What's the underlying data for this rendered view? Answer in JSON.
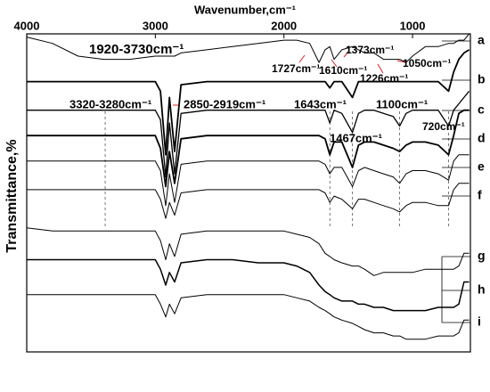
{
  "chart_data": {
    "type": "line",
    "xlabel": "Wavenumber,cm⁻¹",
    "ylabel": "Transmittance,%",
    "xlim": [
      4000,
      550
    ],
    "xticks": [
      4000,
      3000,
      2000,
      1000
    ],
    "ylim": [
      0,
      100
    ],
    "x": [
      4000,
      3800,
      3600,
      3400,
      3200,
      3000,
      2960,
      2919,
      2890,
      2850,
      2800,
      2600,
      2400,
      2200,
      2000,
      1900,
      1800,
      1727,
      1680,
      1643,
      1610,
      1550,
      1467,
      1420,
      1373,
      1300,
      1226,
      1150,
      1100,
      1050,
      1000,
      900,
      800,
      720,
      680,
      640,
      600,
      560
    ],
    "series": [
      {
        "name": "a",
        "color": "#000000",
        "values": [
          99,
          97,
          93,
          92,
          92,
          93,
          93,
          93,
          93,
          93,
          94,
          95,
          96,
          97,
          98,
          98,
          97,
          91,
          95,
          96,
          92,
          95,
          96,
          95,
          94,
          94,
          92,
          92,
          92,
          91,
          93,
          96,
          96,
          97,
          97,
          98,
          98,
          100
        ]
      },
      {
        "name": "b",
        "color": "#000000",
        "values": [
          85,
          85,
          85,
          85,
          85,
          85,
          82,
          62,
          80,
          63,
          84,
          85,
          85,
          85,
          85,
          85,
          85,
          85,
          85,
          83,
          85,
          85,
          80,
          85,
          85,
          85,
          85,
          85,
          85,
          85,
          85,
          85,
          85,
          82,
          88,
          92,
          94,
          95
        ]
      },
      {
        "name": "c",
        "color": "#000000",
        "values": [
          76,
          76,
          76,
          76,
          76,
          76,
          73,
          55,
          72,
          56,
          75,
          76,
          76,
          76,
          76,
          76,
          76,
          76,
          76,
          72,
          76,
          75,
          69,
          75,
          76,
          76,
          75,
          74,
          71,
          75,
          76,
          76,
          76,
          71,
          76,
          78,
          80,
          82
        ]
      },
      {
        "name": "d",
        "color": "#000000",
        "values": [
          68,
          68,
          68,
          68,
          68,
          68,
          64,
          52,
          63,
          53,
          67,
          68,
          68,
          68,
          68,
          68,
          68,
          68,
          67,
          62,
          66,
          66,
          58,
          65,
          66,
          66,
          65,
          64,
          63,
          65,
          66,
          66,
          65,
          62,
          68,
          75,
          76,
          76
        ]
      },
      {
        "name": "e",
        "color": "#000000",
        "values": [
          60,
          60,
          60,
          60,
          60,
          60,
          57,
          46,
          56,
          47,
          59,
          60,
          60,
          60,
          60,
          60,
          60,
          60,
          59,
          56,
          58,
          58,
          52,
          57,
          58,
          57,
          56,
          55,
          53,
          56,
          57,
          57,
          56,
          54,
          60,
          62,
          62,
          62
        ]
      },
      {
        "name": "f",
        "color": "#000000",
        "values": [
          51,
          51,
          51,
          51,
          51,
          51,
          48,
          42,
          47,
          43,
          50,
          51,
          51,
          51,
          51,
          51,
          51,
          51,
          50,
          47,
          49,
          48,
          45,
          48,
          48,
          47,
          46,
          45,
          44,
          46,
          47,
          47,
          46,
          46,
          51,
          53,
          53,
          53
        ]
      },
      {
        "name": "g",
        "color": "#000000",
        "values": [
          39,
          38,
          38,
          38,
          38,
          38,
          35,
          29,
          34,
          30,
          37,
          38,
          38,
          38,
          38,
          37,
          36,
          34,
          31,
          30,
          29,
          28,
          27,
          27,
          26,
          24,
          25,
          25,
          25,
          25,
          25,
          26,
          26,
          26,
          26,
          27,
          31,
          31
        ]
      },
      {
        "name": "h",
        "color": "#000000",
        "values": [
          29,
          29,
          29,
          29,
          29,
          29,
          26,
          21,
          25,
          22,
          28,
          29,
          29,
          28,
          28,
          27,
          25,
          21,
          19,
          18,
          17,
          16,
          16,
          15,
          15,
          14,
          14,
          13,
          13,
          13,
          13,
          13,
          14,
          14,
          14,
          15,
          22,
          22
        ]
      },
      {
        "name": "i",
        "color": "#000000",
        "values": [
          18,
          18,
          18,
          18,
          18,
          18,
          15,
          11,
          15,
          12,
          17,
          18,
          18,
          18,
          18,
          17,
          16,
          14,
          13,
          12,
          11,
          10,
          9,
          8,
          7,
          6,
          6,
          5,
          5,
          4,
          4,
          4,
          5,
          5,
          5,
          6,
          10,
          10
        ]
      }
    ],
    "reference_lines": [
      3390,
      1643,
      1467,
      1100,
      720
    ],
    "annotations": [
      "1920-3730cm⁻¹",
      "1727cm⁻¹",
      "1610cm⁻¹",
      "1373cm⁻¹",
      "1226cm⁻¹",
      "1050cm⁻¹",
      "3320-3280cm⁻¹",
      "2850-2919cm⁻¹",
      "1643cm⁻¹",
      "1100cm⁻¹",
      "1467cm⁻¹",
      "720cm⁻¹"
    ],
    "grid": false
  }
}
